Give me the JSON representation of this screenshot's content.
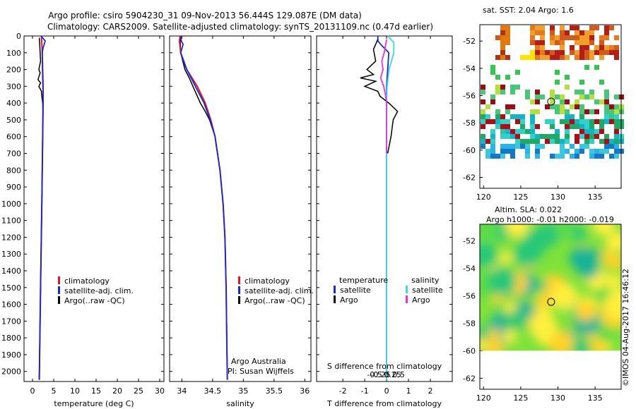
{
  "title": {
    "line1": "Argo profile: csiro 5904230_31 09-Nov-2013 56.444S 129.087E (DM data)",
    "line2": "Climatology: CARS2009. Satellite-adjusted climatology: synTS_20131109.nc (0.47d earlier)"
  },
  "colors": {
    "climatology": "#e8141e",
    "satellite": "#1428e6",
    "argo": "#000000",
    "sal_satellite": "#36dcdc",
    "sal_argo": "#e632e6"
  },
  "chart_data": [
    {
      "type": "line",
      "name": "temperature-profile",
      "xlabel": "temperature (deg C)",
      "ylabel": "",
      "xlim": [
        -2,
        31
      ],
      "ylim": [
        2060,
        0
      ],
      "xticks": [
        0,
        5,
        10,
        15,
        20,
        25,
        30
      ],
      "yticks": [
        0,
        100,
        200,
        300,
        400,
        500,
        600,
        700,
        800,
        900,
        1000,
        1100,
        1200,
        1300,
        1400,
        1500,
        1600,
        1700,
        1800,
        1900,
        2000
      ],
      "legend": [
        "climatology",
        "satellite-adj. clim.",
        "Argo(..raw -QC)"
      ],
      "series": [
        {
          "name": "climatology",
          "depth": [
            0,
            50,
            100,
            200,
            300,
            400,
            500,
            700,
            1000,
            1500,
            2050
          ],
          "values": [
            2.1,
            2.2,
            2.3,
            2.4,
            2.5,
            2.5,
            2.45,
            2.35,
            2.2,
            1.9,
            1.6
          ]
        },
        {
          "name": "satellite-adj. clim.",
          "depth": [
            0,
            30,
            70,
            100,
            200,
            300,
            400,
            500,
            700,
            1000,
            1500,
            2050
          ],
          "values": [
            2.0,
            3.0,
            2.5,
            2.3,
            2.35,
            2.45,
            2.5,
            2.45,
            2.35,
            2.2,
            1.9,
            1.6
          ]
        },
        {
          "name": "Argo(..raw -QC)",
          "depth": [
            10,
            50,
            100,
            150,
            200,
            220,
            260,
            280,
            300,
            330,
            360,
            400,
            450,
            500,
            700,
            1000,
            1500,
            2050
          ],
          "values": [
            1.6,
            1.7,
            1.8,
            1.9,
            1.5,
            1.8,
            1.3,
            1.9,
            1.5,
            2.1,
            2.2,
            2.4,
            2.45,
            2.45,
            2.35,
            2.2,
            1.9,
            1.6
          ]
        }
      ]
    },
    {
      "type": "line",
      "name": "salinity-profile",
      "xlabel": "salinity",
      "ylabel": "",
      "xlim": [
        33.8,
        36.1
      ],
      "ylim": [
        2060,
        0
      ],
      "xticks": [
        34,
        34.5,
        35,
        35.5,
        36
      ],
      "legend": [
        "climatology",
        "satellite-adj. clim.",
        "Argo(..raw -QC)"
      ],
      "series": [
        {
          "name": "climatology",
          "depth": [
            0,
            30,
            100,
            200,
            300,
            400,
            500,
            600,
            800,
            1000,
            1200,
            1500,
            1800,
            2050
          ],
          "values": [
            33.97,
            33.96,
            33.98,
            34.08,
            34.25,
            34.38,
            34.47,
            34.54,
            34.62,
            34.67,
            34.7,
            34.72,
            34.73,
            34.74
          ]
        },
        {
          "name": "satellite-adj. clim.",
          "depth": [
            0,
            30,
            50,
            100,
            200,
            300,
            400,
            500,
            600,
            800,
            1000,
            1200,
            1500,
            1800,
            2050
          ],
          "values": [
            33.98,
            33.99,
            34.02,
            33.98,
            34.08,
            34.22,
            34.36,
            34.46,
            34.54,
            34.62,
            34.67,
            34.7,
            34.72,
            34.73,
            34.74
          ]
        },
        {
          "name": "Argo(..raw -QC)",
          "depth": [
            10,
            100,
            200,
            250,
            300,
            350,
            400,
            450,
            500,
            600,
            700
          ],
          "values": [
            33.97,
            33.98,
            34.05,
            34.12,
            34.18,
            34.24,
            34.3,
            34.38,
            34.45,
            34.54,
            34.58
          ]
        }
      ]
    },
    {
      "type": "line",
      "name": "difference-profile",
      "xlabel": "T difference from climatology",
      "xlabel2": "S difference from climatology",
      "xlim": [
        -3.2,
        3.0
      ],
      "ylim": [
        2060,
        0
      ],
      "xticks": [
        -2,
        -1,
        0,
        1,
        2
      ],
      "xticklabels": [
        "-2",
        "-1",
        "0",
        "1",
        "2"
      ],
      "sticks": [
        -0.5,
        -0.25,
        0,
        0.25,
        0.5
      ],
      "sticklabels": [
        "-0.5",
        "-0.25",
        "0",
        "0.25",
        "0.5"
      ],
      "legend_temperature": {
        "title": "temperature",
        "items": [
          "satellite",
          "Argo"
        ]
      },
      "legend_salinity": {
        "title": "salinity",
        "items": [
          "satellite",
          "Argo"
        ]
      },
      "series": [
        {
          "name": "T satellite",
          "depth": [
            0,
            30,
            60,
            100,
            200,
            300,
            400,
            500,
            1000,
            1500,
            2050
          ],
          "values": [
            -0.4,
            -0.4,
            -0.2,
            0.1,
            0.05,
            0.0,
            0.0,
            0.0,
            0.0,
            0.0,
            0.0
          ]
        },
        {
          "name": "T Argo",
          "depth": [
            20,
            80,
            150,
            200,
            230,
            250,
            270,
            300,
            330,
            360,
            400,
            450,
            500,
            600,
            700
          ],
          "values": [
            -0.4,
            -0.6,
            -0.5,
            -0.9,
            -0.6,
            -1.2,
            -0.5,
            -1.0,
            -0.4,
            -0.3,
            0.1,
            0.5,
            0.3,
            0.2,
            0.05
          ]
        },
        {
          "name": "S satellite",
          "depth": [
            0,
            40,
            100,
            200,
            300,
            400,
            500,
            700,
            1000,
            1500,
            2050
          ],
          "values": [
            0.05,
            0.3,
            0.3,
            0.1,
            0.02,
            0.0,
            0.0,
            0.0,
            0.0,
            0.0,
            0.0
          ]
        },
        {
          "name": "S Argo",
          "depth": [
            20,
            100,
            150,
            200,
            250,
            300,
            350,
            400,
            500,
            700
          ],
          "values": [
            0.0,
            -0.1,
            -0.2,
            -0.15,
            -0.25,
            -0.12,
            -0.05,
            0.0,
            0.0,
            0.0
          ]
        }
      ]
    }
  ],
  "sst_map": {
    "title": "sat. SST: 2.04 Argo: 1.6",
    "xticks": [
      120,
      125,
      130,
      135
    ],
    "yticks": [
      -52,
      -54,
      -56,
      -58,
      -60,
      -62
    ]
  },
  "sla_map": {
    "title1": "Altim. SLA: 0.022",
    "title2": "Argo h1000: -0.01 h2000: -0.019",
    "xticks": [
      120,
      125,
      130,
      135
    ],
    "yticks": [
      -52,
      -54,
      -56,
      -58,
      -60,
      -62
    ]
  },
  "labels": {
    "argo_australia": "Argo Australia",
    "pi": "PI: Susan Wijffels",
    "credit": "©IMOS 04-Aug-2017 16:46:12"
  }
}
